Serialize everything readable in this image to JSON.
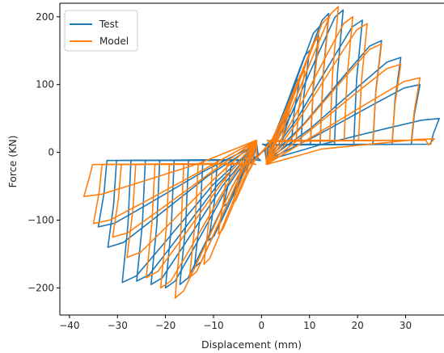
{
  "chart_data": {
    "type": "line",
    "title": "",
    "xlabel": "Displacement (mm)",
    "ylabel": "Force (KN)",
    "xlim": [
      -42,
      38
    ],
    "ylim": [
      -240,
      220
    ],
    "xticks": [
      -40,
      -30,
      -20,
      -10,
      0,
      10,
      20,
      30,
      40
    ],
    "yticks": [
      -200,
      -100,
      0,
      100,
      200
    ],
    "xtick_labels": [
      "−40",
      "−30",
      "−20",
      "−10",
      "0",
      "10",
      "20",
      "30",
      "40"
    ],
    "ytick_labels": [
      "−200",
      "−100",
      "0",
      "100",
      "200"
    ],
    "grid": false,
    "legend_position": "top-left",
    "series": [
      {
        "name": "Test",
        "color": "#1f77b4",
        "loops": [
          {
            "d": 2,
            "f": 18
          },
          {
            "d": 4,
            "f": 30
          },
          {
            "d": 6,
            "f": 55
          },
          {
            "d": 8,
            "f": 110
          },
          {
            "d": 10,
            "f": 150
          },
          {
            "d": 12,
            "f": 185
          },
          {
            "d": 14,
            "f": 205
          },
          {
            "d": 17,
            "f": 210
          },
          {
            "d": 21,
            "f": 195
          },
          {
            "d": 25,
            "f": 165
          },
          {
            "d": 29,
            "f": 140
          },
          {
            "d": 33,
            "f": 100
          },
          {
            "d": 37,
            "f": 50
          }
        ],
        "neg_loops": [
          {
            "d": -2,
            "f": -15
          },
          {
            "d": -5,
            "f": -40
          },
          {
            "d": -8,
            "f": -80
          },
          {
            "d": -11,
            "f": -130
          },
          {
            "d": -14,
            "f": -170
          },
          {
            "d": -17,
            "f": -195
          },
          {
            "d": -20,
            "f": -200
          },
          {
            "d": -23,
            "f": -195
          },
          {
            "d": -26,
            "f": -190
          },
          {
            "d": -29,
            "f": -192
          },
          {
            "d": -32,
            "f": -140
          },
          {
            "d": -34,
            "f": -110
          }
        ]
      },
      {
        "name": "Model",
        "color": "#ff7f0e",
        "loops": [
          {
            "d": 3,
            "f": 25
          },
          {
            "d": 6,
            "f": 70
          },
          {
            "d": 9,
            "f": 120
          },
          {
            "d": 12,
            "f": 170
          },
          {
            "d": 14,
            "f": 200
          },
          {
            "d": 16,
            "f": 215
          },
          {
            "d": 19,
            "f": 200
          },
          {
            "d": 22,
            "f": 190
          },
          {
            "d": 25,
            "f": 160
          },
          {
            "d": 29,
            "f": 130
          },
          {
            "d": 33,
            "f": 110
          },
          {
            "d": 36,
            "f": 20
          }
        ],
        "neg_loops": [
          {
            "d": -3,
            "f": -30
          },
          {
            "d": -6,
            "f": -75
          },
          {
            "d": -9,
            "f": -120
          },
          {
            "d": -12,
            "f": -165
          },
          {
            "d": -15,
            "f": -185
          },
          {
            "d": -18,
            "f": -215
          },
          {
            "d": -21,
            "f": -200
          },
          {
            "d": -24,
            "f": -185
          },
          {
            "d": -28,
            "f": -155
          },
          {
            "d": -31,
            "f": -125
          },
          {
            "d": -35,
            "f": -105
          },
          {
            "d": -37,
            "f": -65
          }
        ]
      }
    ]
  }
}
